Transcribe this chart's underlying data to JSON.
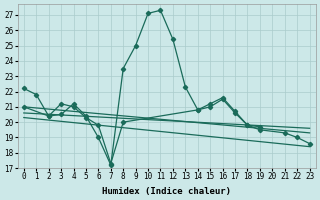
{
  "xlabel": "Humidex (Indice chaleur)",
  "bg_color": "#cce8e8",
  "grid_color": "#aacccc",
  "line_color": "#1a6b5a",
  "x_main": [
    0,
    1,
    2,
    3,
    4,
    5,
    6,
    7,
    8,
    9,
    10,
    11,
    12,
    13,
    14,
    15,
    16,
    17,
    18,
    19,
    20,
    21,
    22,
    23
  ],
  "y_main": [
    22.2,
    21.8,
    20.4,
    20.5,
    21.2,
    20.4,
    19.0,
    17.2,
    23.5,
    25.0,
    27.1,
    27.3,
    25.4,
    22.3,
    20.8,
    21.2,
    21.6,
    20.7,
    19.8,
    19.7,
    null,
    null,
    null,
    null
  ],
  "x_line2": [
    0,
    2,
    3,
    4,
    5,
    6,
    7,
    8,
    14,
    15,
    16,
    17,
    18,
    19,
    21,
    22,
    23
  ],
  "y_line2": [
    21.0,
    20.4,
    21.2,
    21.0,
    20.3,
    19.8,
    17.3,
    20.0,
    20.8,
    21.0,
    21.5,
    20.6,
    19.8,
    19.5,
    19.3,
    19.0,
    18.6
  ],
  "trend1_x": [
    0,
    23
  ],
  "trend1_y": [
    21.0,
    19.3
  ],
  "trend2_x": [
    0,
    23
  ],
  "trend2_y": [
    20.6,
    19.6
  ],
  "trend3_x": [
    0,
    23
  ],
  "trend3_y": [
    20.3,
    18.4
  ],
  "ylim": [
    17,
    27.7
  ],
  "xlim": [
    -0.5,
    23.5
  ],
  "yticks": [
    17,
    18,
    19,
    20,
    21,
    22,
    23,
    24,
    25,
    26,
    27
  ],
  "xticks": [
    0,
    1,
    2,
    3,
    4,
    5,
    6,
    7,
    8,
    9,
    10,
    11,
    12,
    13,
    14,
    15,
    16,
    17,
    18,
    19,
    20,
    21,
    22,
    23
  ]
}
